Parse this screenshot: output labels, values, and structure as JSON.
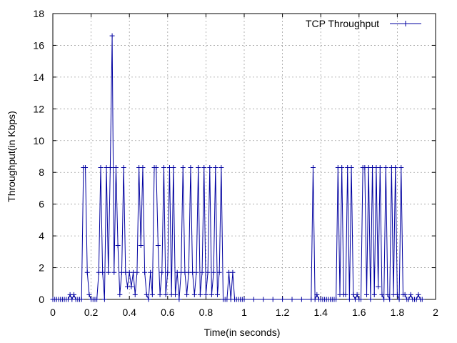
{
  "chart_data": {
    "type": "line",
    "title": "",
    "xlabel": "Time(in seconds)",
    "ylabel": "Throughput(in Kbps)",
    "xlim": [
      0,
      2
    ],
    "ylim": [
      0,
      18
    ],
    "x_ticks": [
      "0",
      "0.2",
      "0.4",
      "0.6",
      "0.8",
      "1",
      "1.2",
      "1.4",
      "1.6",
      "1.8",
      "2"
    ],
    "y_ticks": [
      "0",
      "2",
      "4",
      "6",
      "8",
      "10",
      "12",
      "14",
      "16",
      "18"
    ],
    "grid": true,
    "legend_position": "top-right",
    "series": [
      {
        "name": "TCP Throughput",
        "color": "#0000a0",
        "marker": "plus",
        "points": [
          [
            0.0,
            0
          ],
          [
            0.01,
            0
          ],
          [
            0.02,
            0
          ],
          [
            0.03,
            0
          ],
          [
            0.04,
            0
          ],
          [
            0.05,
            0
          ],
          [
            0.06,
            0
          ],
          [
            0.07,
            0
          ],
          [
            0.08,
            0
          ],
          [
            0.09,
            0.3
          ],
          [
            0.1,
            0
          ],
          [
            0.11,
            0.3
          ],
          [
            0.12,
            0
          ],
          [
            0.13,
            0
          ],
          [
            0.14,
            0
          ],
          [
            0.15,
            0
          ],
          [
            0.16,
            8.3
          ],
          [
            0.17,
            8.3
          ],
          [
            0.18,
            1.7
          ],
          [
            0.19,
            0.3
          ],
          [
            0.2,
            0
          ],
          [
            0.21,
            0
          ],
          [
            0.22,
            0
          ],
          [
            0.23,
            0
          ],
          [
            0.24,
            1.7
          ],
          [
            0.25,
            8.3
          ],
          [
            0.26,
            1.7
          ],
          [
            0.27,
            0
          ],
          [
            0.28,
            8.3
          ],
          [
            0.29,
            1.7
          ],
          [
            0.3,
            8.3
          ],
          [
            0.31,
            16.6
          ],
          [
            0.32,
            1.7
          ],
          [
            0.33,
            8.3
          ],
          [
            0.34,
            3.4
          ],
          [
            0.35,
            0.3
          ],
          [
            0.36,
            1.7
          ],
          [
            0.37,
            8.3
          ],
          [
            0.38,
            1.7
          ],
          [
            0.39,
            0.8
          ],
          [
            0.4,
            1.7
          ],
          [
            0.41,
            0.8
          ],
          [
            0.42,
            1.7
          ],
          [
            0.43,
            0.3
          ],
          [
            0.44,
            1.7
          ],
          [
            0.45,
            8.3
          ],
          [
            0.46,
            3.4
          ],
          [
            0.47,
            8.3
          ],
          [
            0.48,
            1.7
          ],
          [
            0.49,
            0.3
          ],
          [
            0.5,
            0
          ],
          [
            0.51,
            1.7
          ],
          [
            0.52,
            0.3
          ],
          [
            0.53,
            8.3
          ],
          [
            0.54,
            8.3
          ],
          [
            0.55,
            3.4
          ],
          [
            0.56,
            0.3
          ],
          [
            0.57,
            1.7
          ],
          [
            0.58,
            8.3
          ],
          [
            0.59,
            0.3
          ],
          [
            0.6,
            1.7
          ],
          [
            0.61,
            8.3
          ],
          [
            0.62,
            0.3
          ],
          [
            0.63,
            8.3
          ],
          [
            0.64,
            0.3
          ],
          [
            0.65,
            1.7
          ],
          [
            0.66,
            0
          ],
          [
            0.67,
            1.7
          ],
          [
            0.68,
            8.3
          ],
          [
            0.69,
            1.7
          ],
          [
            0.7,
            0.3
          ],
          [
            0.71,
            1.7
          ],
          [
            0.72,
            8.3
          ],
          [
            0.73,
            1.7
          ],
          [
            0.74,
            0.3
          ],
          [
            0.75,
            1.7
          ],
          [
            0.76,
            8.3
          ],
          [
            0.77,
            0.3
          ],
          [
            0.78,
            1.7
          ],
          [
            0.79,
            8.3
          ],
          [
            0.8,
            0.3
          ],
          [
            0.81,
            1.7
          ],
          [
            0.82,
            8.3
          ],
          [
            0.83,
            0.3
          ],
          [
            0.84,
            1.7
          ],
          [
            0.85,
            8.3
          ],
          [
            0.86,
            0.3
          ],
          [
            0.87,
            1.7
          ],
          [
            0.88,
            8.3
          ],
          [
            0.89,
            0
          ],
          [
            0.9,
            0
          ],
          [
            0.91,
            0
          ],
          [
            0.92,
            1.7
          ],
          [
            0.93,
            0
          ],
          [
            0.94,
            1.7
          ],
          [
            0.95,
            0
          ],
          [
            0.96,
            0
          ],
          [
            0.97,
            0
          ],
          [
            0.98,
            0
          ],
          [
            0.99,
            0
          ],
          [
            1.0,
            0
          ],
          [
            1.05,
            0
          ],
          [
            1.1,
            0
          ],
          [
            1.15,
            0
          ],
          [
            1.2,
            0
          ],
          [
            1.25,
            0
          ],
          [
            1.3,
            0
          ],
          [
            1.35,
            0
          ],
          [
            1.36,
            8.3
          ],
          [
            1.37,
            0
          ],
          [
            1.38,
            0.3
          ],
          [
            1.39,
            0
          ],
          [
            1.4,
            0
          ],
          [
            1.41,
            0
          ],
          [
            1.42,
            0
          ],
          [
            1.43,
            0
          ],
          [
            1.44,
            0
          ],
          [
            1.45,
            0
          ],
          [
            1.46,
            0
          ],
          [
            1.47,
            0
          ],
          [
            1.48,
            0
          ],
          [
            1.49,
            8.3
          ],
          [
            1.5,
            0.3
          ],
          [
            1.51,
            8.3
          ],
          [
            1.52,
            0.3
          ],
          [
            1.53,
            0.3
          ],
          [
            1.54,
            8.3
          ],
          [
            1.55,
            0
          ],
          [
            1.56,
            8.3
          ],
          [
            1.57,
            0.3
          ],
          [
            1.58,
            0
          ],
          [
            1.59,
            0.3
          ],
          [
            1.6,
            0
          ],
          [
            1.61,
            0
          ],
          [
            1.62,
            8.3
          ],
          [
            1.63,
            8.3
          ],
          [
            1.64,
            0.3
          ],
          [
            1.65,
            8.3
          ],
          [
            1.66,
            0
          ],
          [
            1.67,
            8.3
          ],
          [
            1.68,
            0.3
          ],
          [
            1.69,
            8.3
          ],
          [
            1.7,
            0.8
          ],
          [
            1.71,
            8.3
          ],
          [
            1.72,
            0.3
          ],
          [
            1.73,
            0
          ],
          [
            1.74,
            8.3
          ],
          [
            1.75,
            0.3
          ],
          [
            1.76,
            0
          ],
          [
            1.77,
            8.3
          ],
          [
            1.78,
            0.3
          ],
          [
            1.79,
            8.3
          ],
          [
            1.8,
            0.3
          ],
          [
            1.81,
            0
          ],
          [
            1.82,
            8.3
          ],
          [
            1.83,
            0.3
          ],
          [
            1.84,
            0.3
          ],
          [
            1.85,
            0
          ],
          [
            1.86,
            0
          ],
          [
            1.87,
            0.3
          ],
          [
            1.88,
            0
          ],
          [
            1.89,
            0
          ],
          [
            1.9,
            0
          ],
          [
            1.91,
            0.3
          ],
          [
            1.92,
            0
          ],
          [
            1.93,
            0
          ]
        ]
      }
    ]
  }
}
